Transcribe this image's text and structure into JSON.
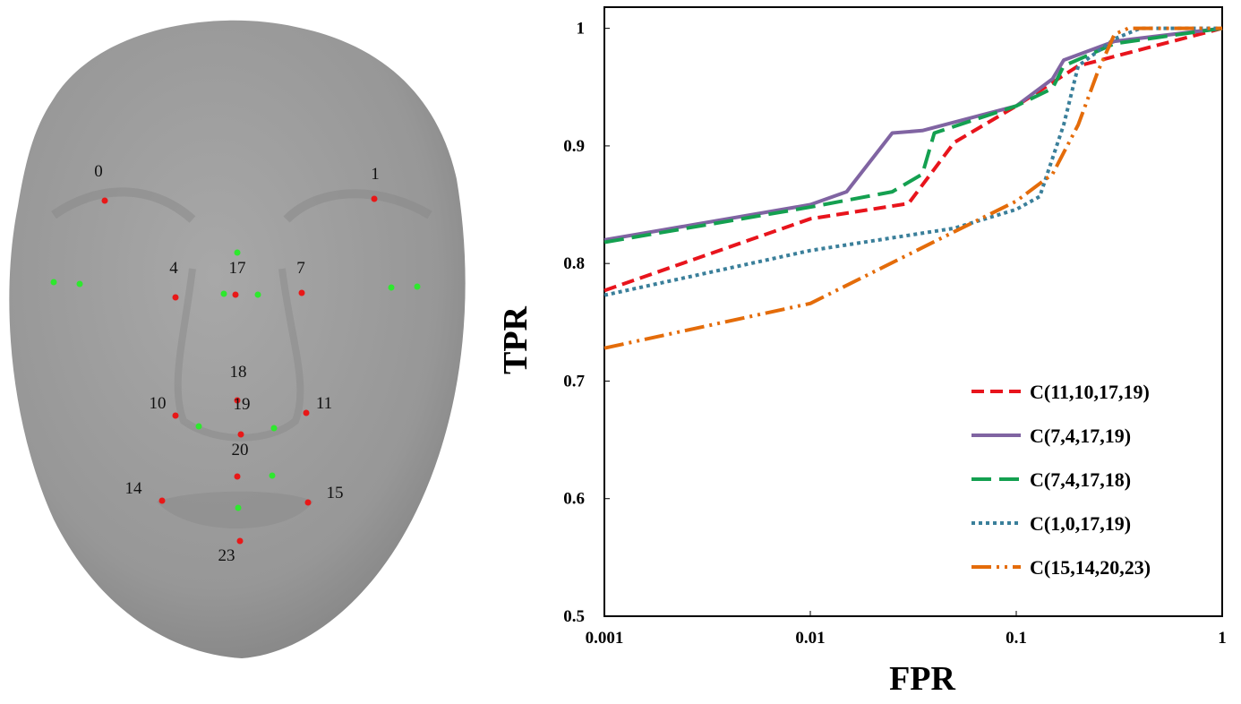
{
  "face": {
    "landmarks": [
      "0",
      "1",
      "4",
      "17",
      "7",
      "18",
      "10",
      "19",
      "11",
      "20",
      "14",
      "15",
      "23"
    ]
  },
  "chart_data": {
    "type": "line",
    "x_label": "FPR",
    "y_label": "TPR",
    "xscale": "log",
    "xlim": [
      0.001,
      1
    ],
    "xticks": [
      0.001,
      0.01,
      0.1,
      1
    ],
    "ylim": [
      0.5,
      1.018
    ],
    "yticks": [
      0.5,
      0.6,
      0.7,
      0.8,
      0.9,
      1
    ],
    "legend": "lower right",
    "series": [
      {
        "name": "C(11,10,17,19)",
        "color": "#e8141c",
        "dash": "14 7",
        "x": [
          0.001,
          0.01,
          0.03,
          0.05,
          0.1,
          0.2,
          1
        ],
        "values": [
          0.777,
          0.838,
          0.851,
          0.903,
          0.934,
          0.968,
          1.0
        ]
      },
      {
        "name": "C(7,4,17,19)",
        "color": "#8064a2",
        "dash": "none",
        "x": [
          0.001,
          0.01,
          0.015,
          0.025,
          0.035,
          0.1,
          0.15,
          0.17,
          0.3,
          1
        ],
        "values": [
          0.82,
          0.85,
          0.861,
          0.911,
          0.913,
          0.934,
          0.957,
          0.973,
          0.989,
          1.0
        ]
      },
      {
        "name": "C(7,4,17,18)",
        "color": "#14a050",
        "dash": "22 9",
        "x": [
          0.001,
          0.01,
          0.025,
          0.035,
          0.04,
          0.1,
          0.15,
          0.17,
          0.3,
          1
        ],
        "values": [
          0.818,
          0.848,
          0.861,
          0.876,
          0.911,
          0.934,
          0.949,
          0.968,
          0.987,
          1.0
        ]
      },
      {
        "name": "C(1,0,17,19)",
        "color": "#3a7f9a",
        "dash": "4 4",
        "x": [
          0.001,
          0.01,
          0.05,
          0.1,
          0.13,
          0.17,
          0.2,
          0.3,
          0.4,
          1
        ],
        "values": [
          0.773,
          0.811,
          0.83,
          0.846,
          0.857,
          0.918,
          0.968,
          0.991,
          1.0,
          1.0
        ]
      },
      {
        "name": "C(15,14,20,23)",
        "color": "#e46c0a",
        "dash": "22 6 3 6 3 6",
        "x": [
          0.001,
          0.01,
          0.05,
          0.1,
          0.15,
          0.2,
          0.25,
          0.3,
          0.35,
          1
        ],
        "values": [
          0.728,
          0.766,
          0.827,
          0.853,
          0.876,
          0.918,
          0.964,
          0.995,
          1.0,
          1.0
        ]
      }
    ]
  }
}
